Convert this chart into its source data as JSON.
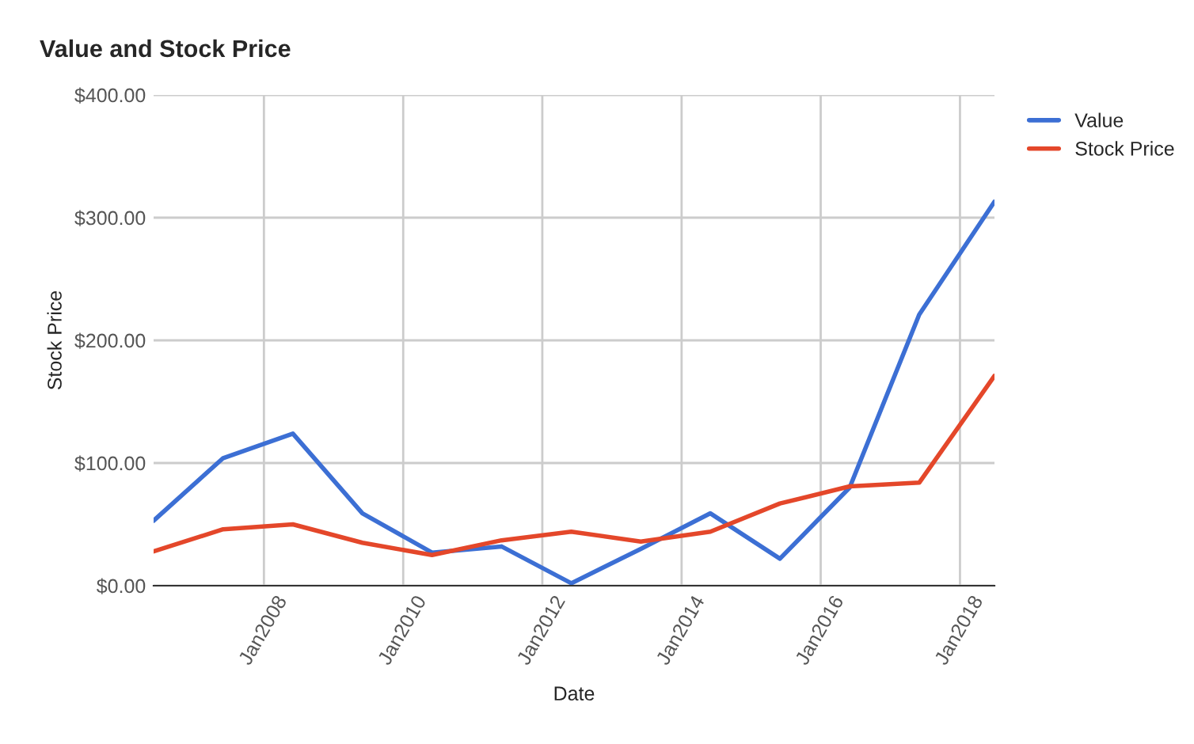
{
  "chart_data": {
    "type": "line",
    "title": "Value and Stock Price",
    "xlabel": "Date",
    "ylabel": "Stock Price",
    "x": [
      "2006-06",
      "2007-06",
      "2008-06",
      "2009-06",
      "2010-06",
      "2011-06",
      "2012-06",
      "2013-06",
      "2014-06",
      "2015-06",
      "2016-06",
      "2017-06",
      "2018-07"
    ],
    "series": [
      {
        "name": "Value",
        "color": "#3c6fd4",
        "values": [
          53,
          104,
          124,
          59,
          27,
          32,
          2,
          30,
          59,
          22,
          80,
          221,
          313
        ]
      },
      {
        "name": "Stock Price",
        "color": "#e4472a",
        "values": [
          28,
          46,
          50,
          35,
          25,
          37,
          44,
          36,
          44,
          67,
          81,
          84,
          171
        ]
      }
    ],
    "xlim": [
      "2006-06",
      "2018-07"
    ],
    "xticks": [
      {
        "value": "2008-01",
        "label": "Jan2008"
      },
      {
        "value": "2010-01",
        "label": "Jan2010"
      },
      {
        "value": "2012-01",
        "label": "Jan2012"
      },
      {
        "value": "2014-01",
        "label": "Jan2014"
      },
      {
        "value": "2016-01",
        "label": "Jan2016"
      },
      {
        "value": "2018-01",
        "label": "Jan2018"
      }
    ],
    "ylim": [
      0,
      400
    ],
    "yticks": [
      {
        "value": 0,
        "label": "$0.00"
      },
      {
        "value": 100,
        "label": "$100.00"
      },
      {
        "value": 200,
        "label": "$200.00"
      },
      {
        "value": 300,
        "label": "$300.00"
      },
      {
        "value": 400,
        "label": "$400.00"
      }
    ],
    "grid": true,
    "legend": "top right",
    "marker": "none",
    "line_style": "solid"
  }
}
